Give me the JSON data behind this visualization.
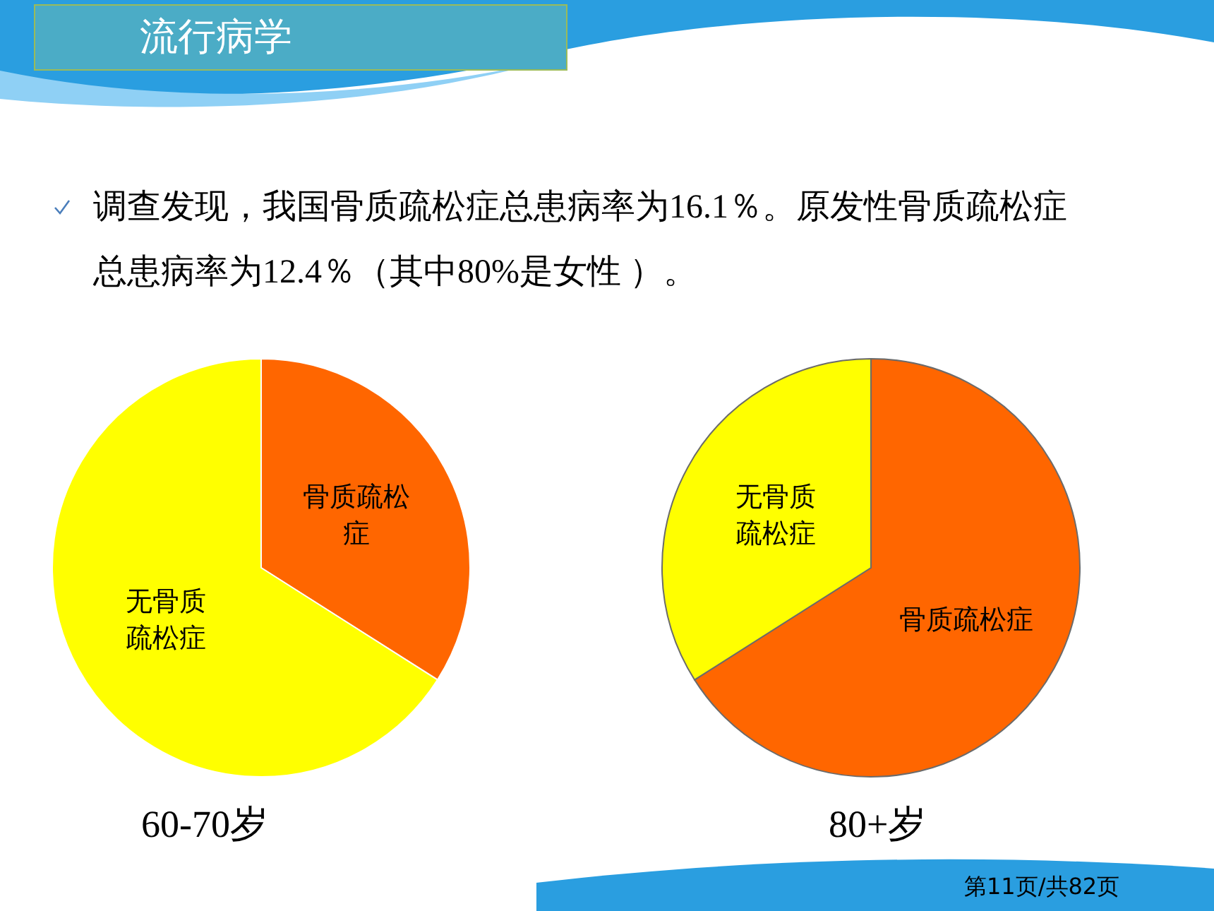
{
  "chart_data": [
    {
      "type": "pie",
      "title": "60-70岁",
      "categories": [
        "骨质疏松症",
        "无骨质疏松症"
      ],
      "values": [
        34,
        66
      ],
      "colors": [
        "#ff6600",
        "#ffff00"
      ],
      "annotations": [
        "流行病学",
        "调查发现，我国骨质疏松症总患病率为16.1％。原发性骨质疏松症总患病率为12.4％（其中80%是女性 ）。"
      ]
    },
    {
      "type": "pie",
      "title": "80+岁",
      "categories": [
        "骨质疏松症",
        "无骨质疏松症"
      ],
      "values": [
        66,
        34
      ],
      "colors": [
        "#ff6600",
        "#ffff00"
      ],
      "annotations": [
        "第11页/共82页"
      ]
    }
  ]
}
